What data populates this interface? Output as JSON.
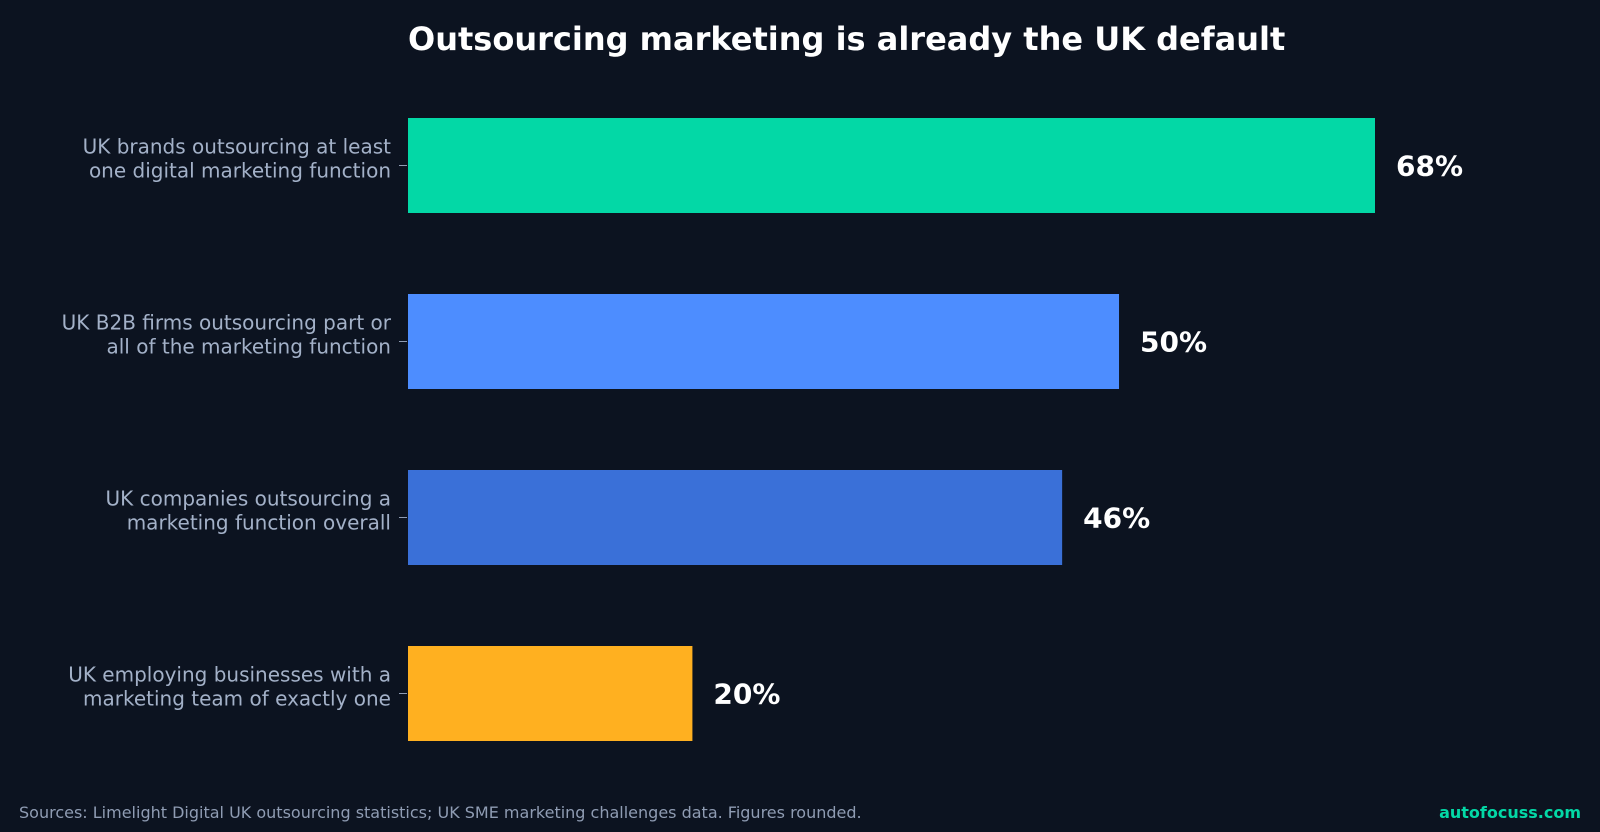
{
  "chart_data": {
    "type": "bar",
    "orientation": "horizontal",
    "title": "Outsourcing marketing is already the UK default",
    "categories": [
      [
        "UK brands outsourcing at least",
        "one digital marketing function"
      ],
      [
        "UK B2B firms outsourcing part or",
        "all of the marketing function"
      ],
      [
        "UK companies outsourcing a",
        "marketing function overall"
      ],
      [
        "UK employing businesses with a",
        "marketing team of exactly one"
      ]
    ],
    "values": [
      68,
      50,
      46,
      20
    ],
    "value_labels": [
      "68%",
      "50%",
      "46%",
      "20%"
    ],
    "xlim": [
      0,
      68
    ],
    "bar_colors": [
      "#03d8a6",
      "#4d8dff",
      "#3a70d8",
      "#ffb020"
    ],
    "grid": false,
    "legend": "none"
  },
  "footer": {
    "source": "Sources: Limelight Digital UK outsourcing statistics; UK SME marketing challenges data. Figures rounded.",
    "brand": "autofocuss.com",
    "brand_color": "#03d8a6"
  },
  "colors": {
    "background": "#0c1320",
    "title": "#ffffff",
    "category_label": "#a3b1c8",
    "value_label": "#ffffff"
  }
}
